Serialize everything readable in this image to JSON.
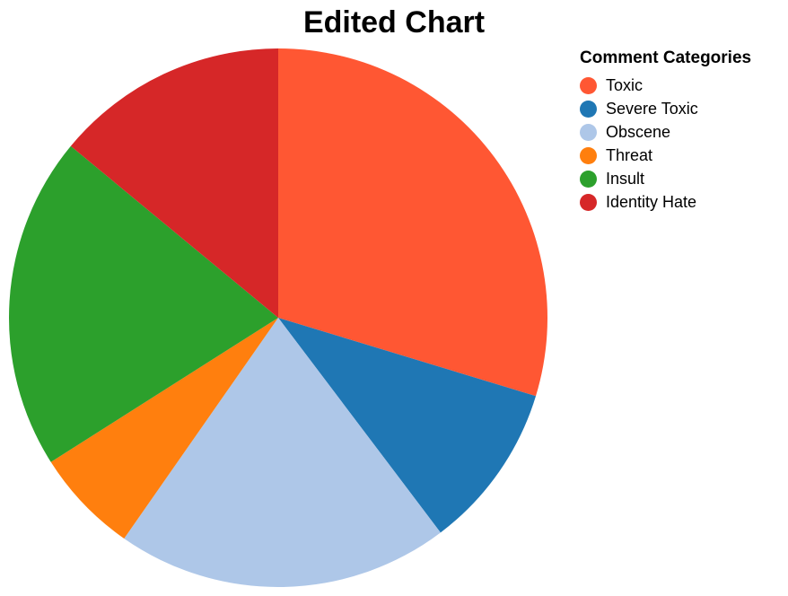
{
  "chart_data": {
    "type": "pie",
    "title": "Edited Chart",
    "legend_title": "Comment Categories",
    "legend_position": "top-right",
    "slices": [
      {
        "label": "Toxic",
        "value": 29.7,
        "color": "#FF5733"
      },
      {
        "label": "Severe Toxic",
        "value": 10.0,
        "color": "#1F77B4"
      },
      {
        "label": "Obscene",
        "value": 20.0,
        "color": "#AEC7E8"
      },
      {
        "label": "Threat",
        "value": 6.3,
        "color": "#FF7F0E"
      },
      {
        "label": "Insult",
        "value": 20.0,
        "color": "#2CA02C"
      },
      {
        "label": "Identity Hate",
        "value": 14.0,
        "color": "#D62728"
      }
    ]
  }
}
